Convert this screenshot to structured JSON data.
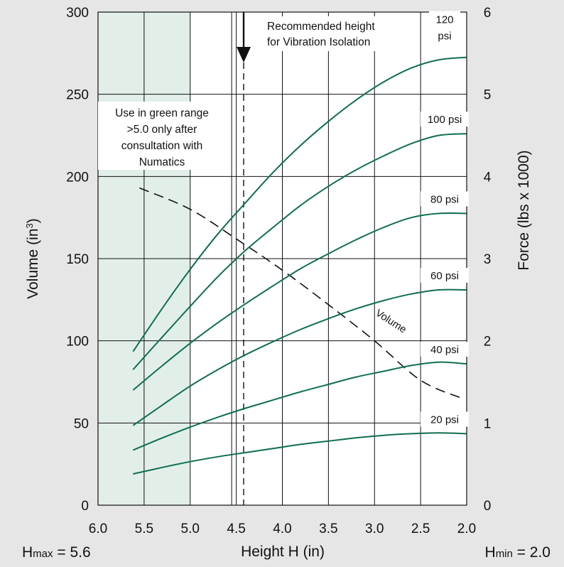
{
  "chart_data": {
    "type": "line",
    "xlabel": "Height H (in)",
    "xlim": [
      6.0,
      2.0
    ],
    "x_ticks": [
      "6.0",
      "5.5",
      "5.0",
      "4.5",
      "4.0",
      "3.5",
      "3.0",
      "2.5",
      "2.0"
    ],
    "ylabel_left": "Volume (in",
    "ylabel_left_sup": "3",
    "ylabel_left_close": ")",
    "ylim_left": [
      0,
      300
    ],
    "y_ticks_left": [
      "0",
      "50",
      "100",
      "150",
      "200",
      "250",
      "300"
    ],
    "ylabel_right": "Force (lbs x 1000)",
    "ylim_right": [
      0,
      6
    ],
    "y_ticks_right": [
      "0",
      "1",
      "2",
      "3",
      "4",
      "5",
      "6"
    ],
    "grid": true,
    "green_range": [
      6.0,
      5.0
    ],
    "extra_vlines": [
      4.55
    ],
    "recommended_height": 4.42,
    "h_max_label": "H",
    "h_max_sub": "max",
    "h_max_value": " = 5.6",
    "h_min_label": "H",
    "h_min_sub": "min",
    "h_min_value": " = 2.0",
    "notes": {
      "recommended": [
        "Recommended height",
        "for Vibration Isolation"
      ],
      "green": [
        "Use in green range",
        ">5.0 only after",
        "consultation with",
        "Numatics"
      ]
    },
    "volume_series": {
      "name": "Volume",
      "axis": "left",
      "x": [
        5.55,
        5.0,
        4.5,
        4.0,
        3.5,
        3.0,
        2.5,
        2.05
      ],
      "y": [
        193,
        180,
        162,
        143,
        122,
        100,
        76,
        65
      ]
    },
    "series": [
      {
        "name": "120 psi",
        "name_lines": [
          "120",
          "psi"
        ],
        "axis": "right",
        "x": [
          5.62,
          5.3,
          5.0,
          4.7,
          4.4,
          4.1,
          3.8,
          3.5,
          3.2,
          2.9,
          2.6,
          2.3,
          2.0
        ],
        "y": [
          1.87,
          2.4,
          2.87,
          3.3,
          3.68,
          4.05,
          4.38,
          4.67,
          4.93,
          5.15,
          5.32,
          5.42,
          5.45
        ]
      },
      {
        "name": "100 psi",
        "axis": "right",
        "x": [
          5.62,
          5.3,
          5.0,
          4.7,
          4.4,
          4.1,
          3.8,
          3.5,
          3.2,
          2.9,
          2.6,
          2.3,
          2.0
        ],
        "y": [
          1.65,
          2.05,
          2.42,
          2.78,
          3.1,
          3.38,
          3.65,
          3.88,
          4.08,
          4.25,
          4.4,
          4.5,
          4.52
        ]
      },
      {
        "name": "80 psi",
        "axis": "right",
        "x": [
          5.62,
          5.3,
          5.0,
          4.7,
          4.4,
          4.1,
          3.8,
          3.5,
          3.2,
          2.9,
          2.6,
          2.3,
          2.0
        ],
        "y": [
          1.4,
          1.7,
          1.97,
          2.22,
          2.45,
          2.67,
          2.88,
          3.06,
          3.23,
          3.38,
          3.5,
          3.55,
          3.55
        ]
      },
      {
        "name": "60 psi",
        "axis": "right",
        "x": [
          5.62,
          5.3,
          5.0,
          4.7,
          4.4,
          4.1,
          3.8,
          3.5,
          3.2,
          2.9,
          2.6,
          2.3,
          2.0
        ],
        "y": [
          0.97,
          1.22,
          1.45,
          1.65,
          1.83,
          1.99,
          2.14,
          2.27,
          2.39,
          2.49,
          2.57,
          2.62,
          2.62
        ]
      },
      {
        "name": "40 psi",
        "axis": "right",
        "x": [
          5.62,
          5.3,
          5.0,
          4.7,
          4.4,
          4.1,
          3.8,
          3.5,
          3.2,
          2.9,
          2.6,
          2.3,
          2.0
        ],
        "y": [
          0.67,
          0.82,
          0.95,
          1.07,
          1.18,
          1.28,
          1.38,
          1.47,
          1.56,
          1.63,
          1.7,
          1.74,
          1.72
        ]
      },
      {
        "name": "20 psi",
        "axis": "right",
        "x": [
          5.62,
          5.3,
          5.0,
          4.7,
          4.4,
          4.1,
          3.8,
          3.5,
          3.2,
          2.9,
          2.6,
          2.3,
          2.0
        ],
        "y": [
          0.38,
          0.46,
          0.53,
          0.59,
          0.64,
          0.69,
          0.74,
          0.78,
          0.82,
          0.85,
          0.87,
          0.88,
          0.87
        ]
      }
    ],
    "colors": {
      "background": "#e6e6e6",
      "plot": "#ffffff",
      "green_band": "#e2efe9",
      "curve": "#0f6e52",
      "grid": "#111111"
    }
  }
}
